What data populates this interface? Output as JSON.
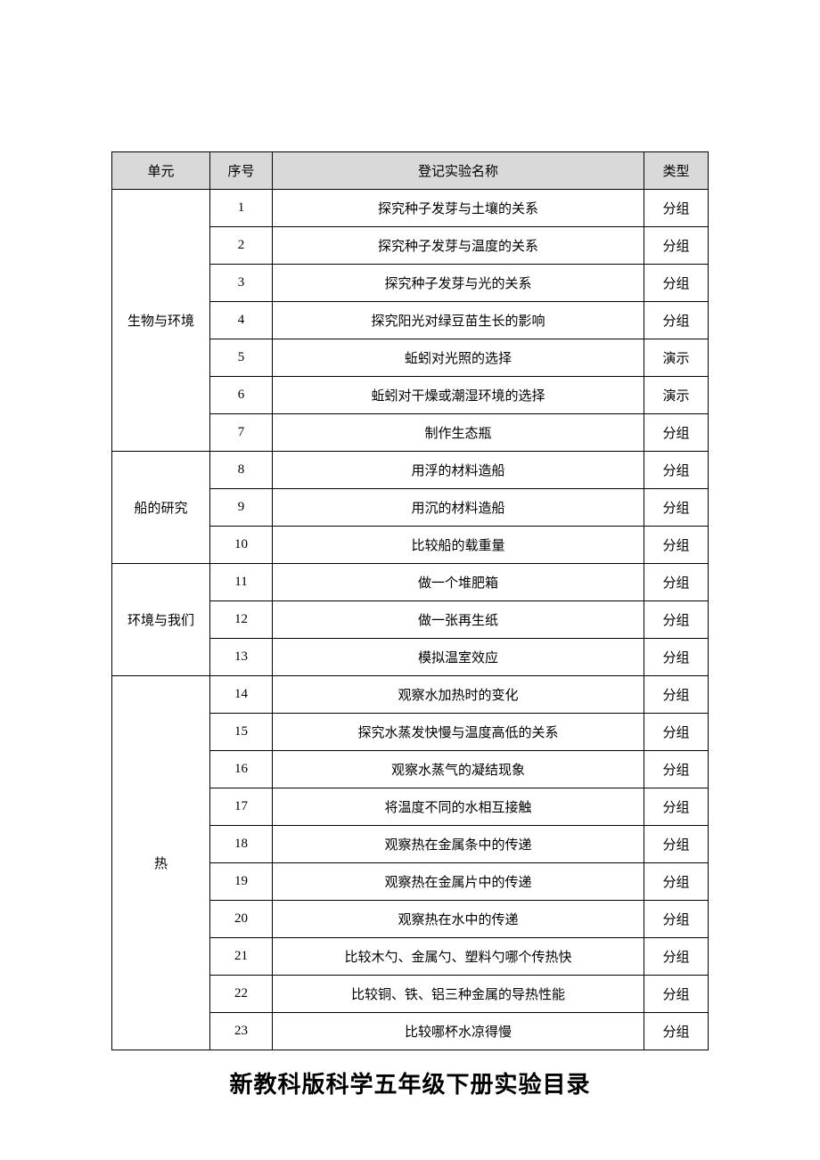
{
  "table": {
    "headers": {
      "unit": "单元",
      "seq": "序号",
      "name": "登记实验名称",
      "type": "类型"
    },
    "header_bg": "#d9d9d9",
    "border_color": "#000000",
    "cell_fontsize": 15,
    "units": [
      {
        "name": "生物与环境",
        "rows": [
          {
            "seq": "1",
            "name": "探究种子发芽与土壤的关系",
            "type": "分组"
          },
          {
            "seq": "2",
            "name": "探究种子发芽与温度的关系",
            "type": "分组"
          },
          {
            "seq": "3",
            "name": "探究种子发芽与光的关系",
            "type": "分组"
          },
          {
            "seq": "4",
            "name": "探究阳光对绿豆苗生长的影响",
            "type": "分组"
          },
          {
            "seq": "5",
            "name": "蚯蚓对光照的选择",
            "type": "演示"
          },
          {
            "seq": "6",
            "name": "蚯蚓对干燥或潮湿环境的选择",
            "type": "演示"
          },
          {
            "seq": "7",
            "name": "制作生态瓶",
            "type": "分组"
          }
        ]
      },
      {
        "name": "船的研究",
        "rows": [
          {
            "seq": "8",
            "name": "用浮的材料造船",
            "type": "分组"
          },
          {
            "seq": "9",
            "name": "用沉的材料造船",
            "type": "分组"
          },
          {
            "seq": "10",
            "name": "比较船的载重量",
            "type": "分组"
          }
        ]
      },
      {
        "name": "环境与我们",
        "rows": [
          {
            "seq": "11",
            "name": "做一个堆肥箱",
            "type": "分组"
          },
          {
            "seq": "12",
            "name": "做一张再生纸",
            "type": "分组"
          },
          {
            "seq": "13",
            "name": "模拟温室效应",
            "type": "分组"
          }
        ]
      },
      {
        "name": "热",
        "rows": [
          {
            "seq": "14",
            "name": "观察水加热时的变化",
            "type": "分组"
          },
          {
            "seq": "15",
            "name": "探究水蒸发快慢与温度高低的关系",
            "type": "分组"
          },
          {
            "seq": "16",
            "name": "观察水蒸气的凝结现象",
            "type": "分组"
          },
          {
            "seq": "17",
            "name": "将温度不同的水相互接触",
            "type": "分组"
          },
          {
            "seq": "18",
            "name": "观察热在金属条中的传递",
            "type": "分组"
          },
          {
            "seq": "19",
            "name": "观察热在金属片中的传递",
            "type": "分组"
          },
          {
            "seq": "20",
            "name": "观察热在水中的传递",
            "type": "分组"
          },
          {
            "seq": "21",
            "name": "比较木勺、金属勺、塑料勺哪个传热快",
            "type": "分组"
          },
          {
            "seq": "22",
            "name": "比较铜、铁、铝三种金属的导热性能",
            "type": "分组"
          },
          {
            "seq": "23",
            "name": "比较哪杯水凉得慢",
            "type": "分组"
          }
        ]
      }
    ]
  },
  "footer_title": "新教科版科学五年级下册实验目录",
  "footer_fontsize": 26
}
